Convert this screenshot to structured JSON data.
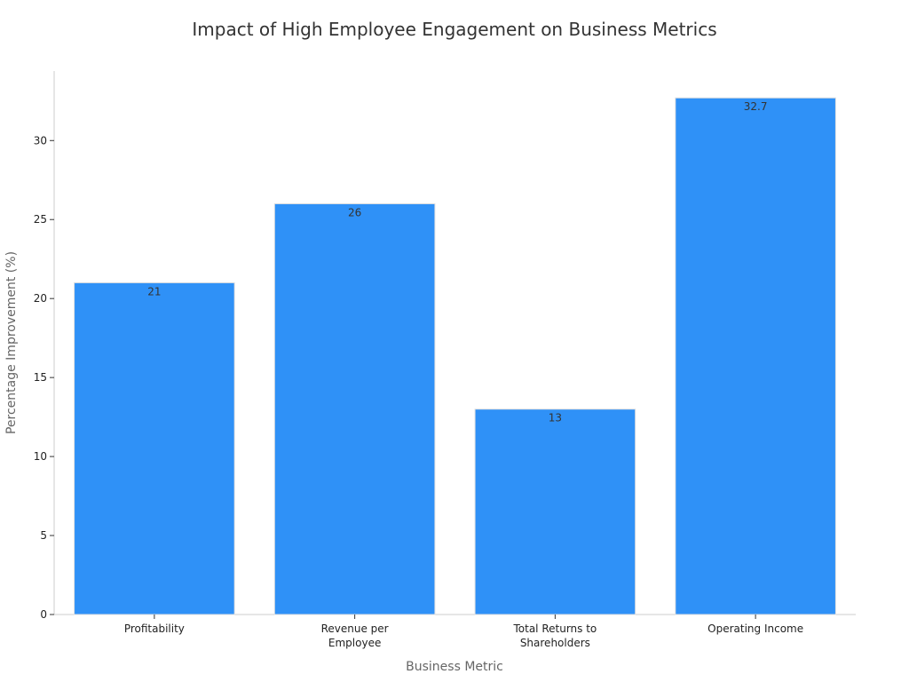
{
  "chart_data": {
    "type": "bar",
    "title": "Impact of High Employee Engagement on Business Metrics",
    "xlabel": "Business Metric",
    "ylabel": "Percentage Improvement (%)",
    "categories": [
      [
        "Profitability"
      ],
      [
        "Revenue per",
        "Employee"
      ],
      [
        "Total Returns to",
        "Shareholders"
      ],
      [
        "Operating Income"
      ]
    ],
    "values": [
      21,
      26,
      13,
      32.7
    ],
    "data_labels": [
      "21",
      "26",
      "13",
      "32.7"
    ],
    "yticks": [
      0,
      5,
      10,
      15,
      20,
      25,
      30
    ],
    "ylim": [
      0,
      34.4
    ],
    "grid": false,
    "bar_color": "#2f91f7"
  }
}
